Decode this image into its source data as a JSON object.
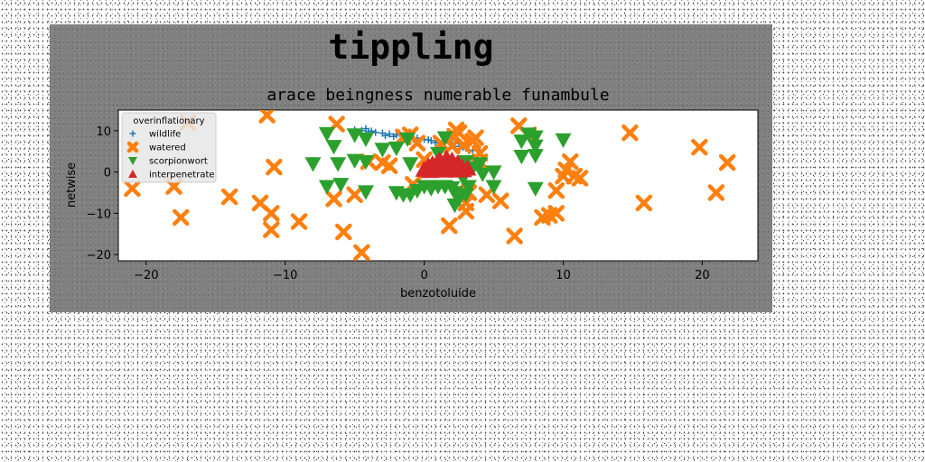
{
  "chart_data": {
    "type": "scatter",
    "suptitle": "tippling",
    "title": "arace beingness numerable funambule",
    "xlabel": "benzotoluide",
    "ylabel": "netwise",
    "xlim": [
      -22,
      24
    ],
    "ylim": [
      -21.5,
      15
    ],
    "xticks": [
      -20,
      -10,
      0,
      10,
      20
    ],
    "yticks": [
      -20,
      -10,
      0,
      10
    ],
    "grid": false,
    "legend": {
      "title": "overinflationary",
      "placement": "top-left"
    },
    "series": [
      {
        "name": "wildlife",
        "marker": "plus",
        "color": "#1f77b4",
        "points": [
          [
            -5,
            10.2
          ],
          [
            -4.5,
            10
          ],
          [
            -4,
            9.8
          ],
          [
            -3.5,
            9.6
          ],
          [
            -3,
            9.4
          ],
          [
            -2.5,
            9.2
          ],
          [
            -2,
            9
          ],
          [
            -1.5,
            8.8
          ],
          [
            -1,
            8.5
          ],
          [
            -0.5,
            8.2
          ],
          [
            0,
            7.9
          ],
          [
            0.5,
            7.6
          ],
          [
            1,
            7.3
          ],
          [
            1.5,
            7
          ],
          [
            2,
            6.6
          ],
          [
            2.5,
            6.2
          ],
          [
            3,
            5.8
          ],
          [
            3.5,
            5.3
          ],
          [
            4,
            4.8
          ],
          [
            -4.8,
            9.5
          ],
          [
            -3.8,
            9.9
          ],
          [
            -2.8,
            8.8
          ],
          [
            -1.8,
            9.4
          ],
          [
            -0.8,
            8.0
          ],
          [
            0.3,
            7.8
          ],
          [
            1.2,
            6.8
          ],
          [
            2.2,
            6.9
          ],
          [
            3.2,
            5.2
          ],
          [
            -4.2,
            10.5
          ],
          [
            -2.2,
            8.6
          ],
          [
            0.8,
            7.1
          ],
          [
            2.8,
            6.0
          ]
        ]
      },
      {
        "name": "watered",
        "marker": "x",
        "color": "#ff7f0e",
        "points": [
          [
            -17,
            12
          ],
          [
            -11.3,
            13.8
          ],
          [
            -6.3,
            11.6
          ],
          [
            -21,
            -4
          ],
          [
            -18,
            -3.5
          ],
          [
            -17.5,
            -11
          ],
          [
            -14,
            -6
          ],
          [
            -11.8,
            -7.5
          ],
          [
            -11,
            -10
          ],
          [
            -11,
            -14
          ],
          [
            -10.8,
            1.2
          ],
          [
            -9,
            -12
          ],
          [
            -6.5,
            -6.5
          ],
          [
            -5.8,
            -14.5
          ],
          [
            -5,
            -5.5
          ],
          [
            -4.5,
            -19.5
          ],
          [
            -4,
            2.5
          ],
          [
            -3,
            2.3
          ],
          [
            -2.5,
            1.5
          ],
          [
            -1.5,
            8.5
          ],
          [
            -1,
            9
          ],
          [
            -0.5,
            7
          ],
          [
            -0.8,
            -3
          ],
          [
            0,
            3
          ],
          [
            1.2,
            7
          ],
          [
            2,
            6.3
          ],
          [
            2.2,
            8.7
          ],
          [
            2.3,
            10.2
          ],
          [
            2.5,
            9.5
          ],
          [
            2.8,
            6.5
          ],
          [
            3,
            -7.5
          ],
          [
            3,
            -9.5
          ],
          [
            3.2,
            -5
          ],
          [
            3.5,
            7.5
          ],
          [
            3.7,
            8.3
          ],
          [
            4,
            4.5
          ],
          [
            4,
            2.5
          ],
          [
            4.5,
            -5.5
          ],
          [
            5.5,
            -7
          ],
          [
            6.5,
            -15.5
          ],
          [
            6.8,
            11.2
          ],
          [
            7.5,
            9
          ],
          [
            8.5,
            -11
          ],
          [
            9,
            -10.5
          ],
          [
            9.5,
            -10
          ],
          [
            9.5,
            -4.5
          ],
          [
            10,
            -1
          ],
          [
            10.2,
            0.5
          ],
          [
            10.5,
            2.5
          ],
          [
            10.8,
            -1
          ],
          [
            11.2,
            -1.5
          ],
          [
            14.8,
            9.5
          ],
          [
            15.8,
            -7.5
          ],
          [
            19.8,
            6
          ],
          [
            21,
            -5
          ],
          [
            21.8,
            2.3
          ],
          [
            1.8,
            -13
          ]
        ]
      },
      {
        "name": "scorpionwort",
        "marker": "triangle-down",
        "color": "#2ca02c",
        "points": [
          [
            -7,
            9.3
          ],
          [
            -6.5,
            6.2
          ],
          [
            -8,
            2
          ],
          [
            -6.2,
            2
          ],
          [
            -7,
            -3.5
          ],
          [
            -6,
            -3
          ],
          [
            -5,
            9
          ],
          [
            -5,
            2.8
          ],
          [
            -4.2,
            8
          ],
          [
            -4.2,
            2.5
          ],
          [
            -4.2,
            -4.8
          ],
          [
            -3,
            5.5
          ],
          [
            -2,
            5.8
          ],
          [
            -1.2,
            8
          ],
          [
            -1,
            2
          ],
          [
            -2,
            -5
          ],
          [
            -1.5,
            -5.5
          ],
          [
            -1,
            -5.5
          ],
          [
            -0.5,
            -4.5
          ],
          [
            0,
            -3.5
          ],
          [
            0.5,
            -4
          ],
          [
            1,
            -3.5
          ],
          [
            1.5,
            -3.5
          ],
          [
            1.5,
            8.3
          ],
          [
            2,
            -3.8
          ],
          [
            2.2,
            -5
          ],
          [
            2.2,
            -8
          ],
          [
            2.5,
            -6.5
          ],
          [
            3,
            -5.5
          ],
          [
            3,
            2.5
          ],
          [
            3.2,
            -3.5
          ],
          [
            3.5,
            1
          ],
          [
            4,
            2
          ],
          [
            4.2,
            -0.5
          ],
          [
            5,
            0
          ],
          [
            5,
            -3.5
          ],
          [
            7,
            7.5
          ],
          [
            7,
            3.8
          ],
          [
            7.5,
            9.2
          ],
          [
            8,
            8.5
          ],
          [
            8,
            6.3
          ],
          [
            8,
            4
          ],
          [
            8,
            -4
          ],
          [
            10,
            7.8
          ],
          [
            1,
            4.5
          ],
          [
            0.8,
            1.5
          ],
          [
            2.8,
            -1.5
          ]
        ]
      },
      {
        "name": "interpenetrate",
        "marker": "triangle-up",
        "color": "#d62728",
        "points": [
          [
            0,
            0.6
          ],
          [
            0.3,
            1.4
          ],
          [
            0.6,
            0.9
          ],
          [
            0.9,
            2.0
          ],
          [
            1.2,
            1.2
          ],
          [
            1.5,
            2.6
          ],
          [
            1.8,
            1.7
          ],
          [
            2.1,
            0.8
          ],
          [
            2.4,
            2.1
          ],
          [
            2.7,
            1.1
          ],
          [
            0.4,
            0.3
          ],
          [
            0.9,
            0.5
          ],
          [
            1.4,
            0.4
          ],
          [
            1.9,
            0.6
          ],
          [
            2.3,
            0.4
          ],
          [
            2.8,
            0.5
          ],
          [
            3.1,
            0.9
          ],
          [
            1.1,
            2.9
          ],
          [
            1.6,
            3.3
          ],
          [
            2.0,
            2.8
          ],
          [
            0.6,
            1.9
          ],
          [
            2.5,
            1.6
          ],
          [
            1.3,
            1.8
          ],
          [
            1.7,
            0.9
          ]
        ]
      }
    ]
  }
}
